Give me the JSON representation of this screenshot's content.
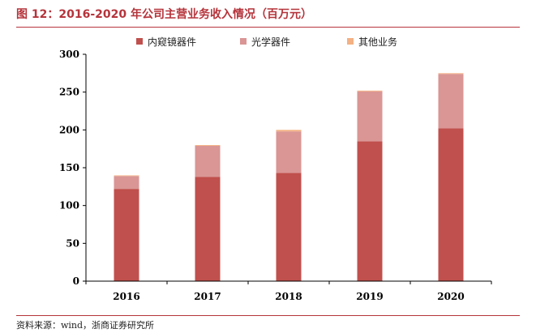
{
  "header": {
    "title": "图 12：2016-2020 年公司主营业务收入情况（百万元）"
  },
  "footer": {
    "source": "资料来源：wind，浙商证券研究所"
  },
  "chart_data": {
    "type": "bar",
    "stacked": true,
    "categories": [
      "2016",
      "2017",
      "2018",
      "2019",
      "2020"
    ],
    "series": [
      {
        "name": "内窥镜器件",
        "color": "#c0504d",
        "values": [
          122,
          138,
          143,
          185,
          202
        ]
      },
      {
        "name": "光学器件",
        "color": "#d99694",
        "values": [
          17,
          41,
          55,
          66,
          72
        ]
      },
      {
        "name": "其他业务",
        "color": "#f4b183",
        "values": [
          0.5,
          1,
          2,
          1,
          1
        ]
      }
    ],
    "ylim": [
      0,
      300
    ],
    "yticks": [
      0,
      50,
      100,
      150,
      200,
      250,
      300
    ],
    "grid": false,
    "legend": "top"
  }
}
